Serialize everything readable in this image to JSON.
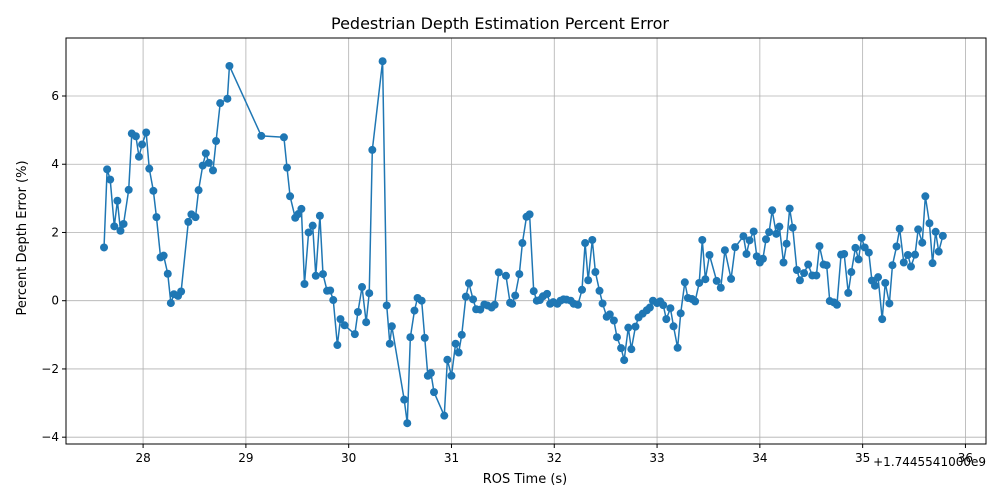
{
  "chart_data": {
    "type": "line",
    "title": "Pedestrian Depth Estimation Percent Error",
    "xlabel": "ROS Time (s)",
    "ylabel": "Percent Depth Error (%)",
    "x_offset_label": "+1.7445541000e9",
    "xlim": [
      27.25,
      36.2
    ],
    "ylim": [
      -4.2,
      7.7
    ],
    "x_ticks": [
      28,
      29,
      30,
      31,
      32,
      33,
      34,
      35,
      36
    ],
    "x_tick_labels": [
      "28",
      "29",
      "30",
      "31",
      "32",
      "33",
      "34",
      "35",
      "36"
    ],
    "y_ticks": [
      -4,
      -2,
      0,
      2,
      4,
      6
    ],
    "y_tick_labels": [
      "−4",
      "−2",
      "0",
      "2",
      "4",
      "6"
    ],
    "grid": true,
    "color": "#1f77b4",
    "series": [
      {
        "x": [
          27.62,
          27.65,
          27.68,
          27.72,
          27.75,
          27.78,
          27.81,
          27.86,
          27.89,
          27.93,
          27.96,
          27.99,
          28.03,
          28.06,
          28.1,
          28.13,
          28.17,
          28.2,
          28.24,
          28.27,
          28.3,
          28.34,
          28.37,
          28.44,
          28.47,
          28.51,
          28.54,
          28.58,
          28.61,
          28.64,
          28.68,
          28.71,
          28.75,
          28.82,
          28.84,
          29.15,
          29.37,
          29.4,
          29.43,
          29.48,
          29.51,
          29.54,
          29.57,
          29.61,
          29.65,
          29.68,
          29.72,
          29.75,
          29.79,
          29.82,
          29.85,
          29.89,
          29.92,
          29.96,
          30.06,
          30.09,
          30.13,
          30.17,
          30.2,
          30.23,
          30.33,
          30.37,
          30.4,
          30.42,
          30.54,
          30.57,
          30.6,
          30.64,
          30.67,
          30.71,
          30.74,
          30.77,
          30.8,
          30.83,
          30.93,
          30.96,
          31.0,
          31.04,
          31.07,
          31.1,
          31.14,
          31.17,
          31.21,
          31.24,
          31.28,
          31.32,
          31.35,
          31.39,
          31.42,
          31.46,
          31.53,
          31.57,
          31.59,
          31.62,
          31.66,
          31.69,
          31.73,
          31.76,
          31.8,
          31.83,
          31.86,
          31.89,
          31.93,
          31.96,
          31.99,
          32.03,
          32.06,
          32.09,
          32.12,
          32.16,
          32.19,
          32.23,
          32.27,
          32.3,
          32.33,
          32.37,
          32.4,
          32.44,
          32.47,
          32.51,
          32.54,
          32.58,
          32.61,
          32.65,
          32.68,
          32.72,
          32.75,
          32.79,
          32.82,
          32.86,
          32.9,
          32.93,
          32.96,
          33.0,
          33.03,
          33.06,
          33.09,
          33.13,
          33.16,
          33.2,
          33.23,
          33.27,
          33.3,
          33.34,
          33.37,
          33.41,
          33.44,
          33.47,
          33.51,
          33.58,
          33.62,
          33.66,
          33.72,
          33.76,
          33.84,
          33.87,
          33.9,
          33.94,
          33.97,
          34.0,
          34.03,
          34.06,
          34.09,
          34.12,
          34.16,
          34.19,
          34.23,
          34.26,
          34.29,
          34.32,
          34.36,
          34.39,
          34.43,
          34.47,
          34.51,
          34.55,
          34.58,
          34.62,
          34.65,
          34.68,
          34.72,
          34.75,
          34.79,
          34.82,
          34.86,
          34.89,
          34.93,
          34.96,
          34.99,
          35.02,
          35.06,
          35.09,
          35.12,
          35.15,
          35.19,
          35.22,
          35.26,
          35.29,
          35.33,
          35.36,
          35.4,
          35.44,
          35.47,
          35.51,
          35.54,
          35.58,
          35.61,
          35.65,
          35.68,
          35.71,
          35.74,
          35.78
        ],
        "y": [
          1.56,
          3.85,
          3.55,
          2.18,
          2.93,
          2.05,
          2.25,
          3.25,
          4.9,
          4.82,
          4.22,
          4.58,
          4.93,
          3.87,
          3.22,
          2.45,
          1.27,
          1.32,
          0.79,
          -0.07,
          0.19,
          0.14,
          0.27,
          2.31,
          2.53,
          2.45,
          3.24,
          3.96,
          4.32,
          4.04,
          3.82,
          4.68,
          5.79,
          5.92,
          6.88,
          4.83,
          4.79,
          3.9,
          3.06,
          2.43,
          2.54,
          2.69,
          0.49,
          2.0,
          2.2,
          0.73,
          2.49,
          0.78,
          0.29,
          0.3,
          0.02,
          -1.3,
          -0.54,
          -0.72,
          -0.98,
          -0.33,
          0.4,
          -0.63,
          0.22,
          4.42,
          7.02,
          -0.14,
          -1.26,
          -0.75,
          -2.9,
          -3.59,
          -1.07,
          -0.29,
          0.08,
          0.0,
          -1.09,
          -2.2,
          -2.12,
          -2.68,
          -3.37,
          -1.73,
          -2.2,
          -1.26,
          -1.52,
          -1.0,
          0.12,
          0.51,
          0.04,
          -0.25,
          -0.26,
          -0.11,
          -0.14,
          -0.2,
          -0.12,
          0.83,
          0.73,
          -0.06,
          -0.09,
          0.15,
          0.78,
          1.69,
          2.46,
          2.53,
          0.28,
          0.0,
          0.02,
          0.13,
          0.2,
          -0.09,
          -0.04,
          -0.09,
          0.0,
          0.04,
          0.03,
          0.0,
          -0.09,
          -0.12,
          0.32,
          1.69,
          0.6,
          1.78,
          0.84,
          0.29,
          -0.08,
          -0.47,
          -0.4,
          -0.58,
          -1.07,
          -1.39,
          -1.74,
          -0.79,
          -1.42,
          -0.76,
          -0.49,
          -0.38,
          -0.28,
          -0.2,
          0.0,
          -0.07,
          -0.02,
          -0.13,
          -0.54,
          -0.22,
          -0.75,
          -1.38,
          -0.37,
          0.54,
          0.08,
          0.05,
          -0.02,
          0.52,
          1.78,
          0.63,
          1.34,
          0.58,
          0.38,
          1.48,
          0.64,
          1.57,
          1.89,
          1.37,
          1.77,
          2.03,
          1.3,
          1.12,
          1.23,
          1.8,
          2.01,
          2.65,
          1.96,
          2.17,
          1.12,
          1.67,
          2.7,
          2.14,
          0.9,
          0.6,
          0.81,
          1.06,
          0.74,
          0.74,
          1.6,
          1.06,
          1.04,
          -0.01,
          -0.05,
          -0.12,
          1.35,
          1.37,
          0.23,
          0.84,
          1.55,
          1.21,
          1.84,
          1.56,
          1.41,
          0.59,
          0.44,
          0.69,
          -0.54,
          0.52,
          -0.08,
          1.04,
          1.59,
          2.11,
          1.12,
          1.34,
          1.0,
          1.35,
          2.09,
          1.7,
          3.06,
          2.27,
          1.1,
          2.02,
          1.44,
          1.9
        ]
      }
    ]
  }
}
